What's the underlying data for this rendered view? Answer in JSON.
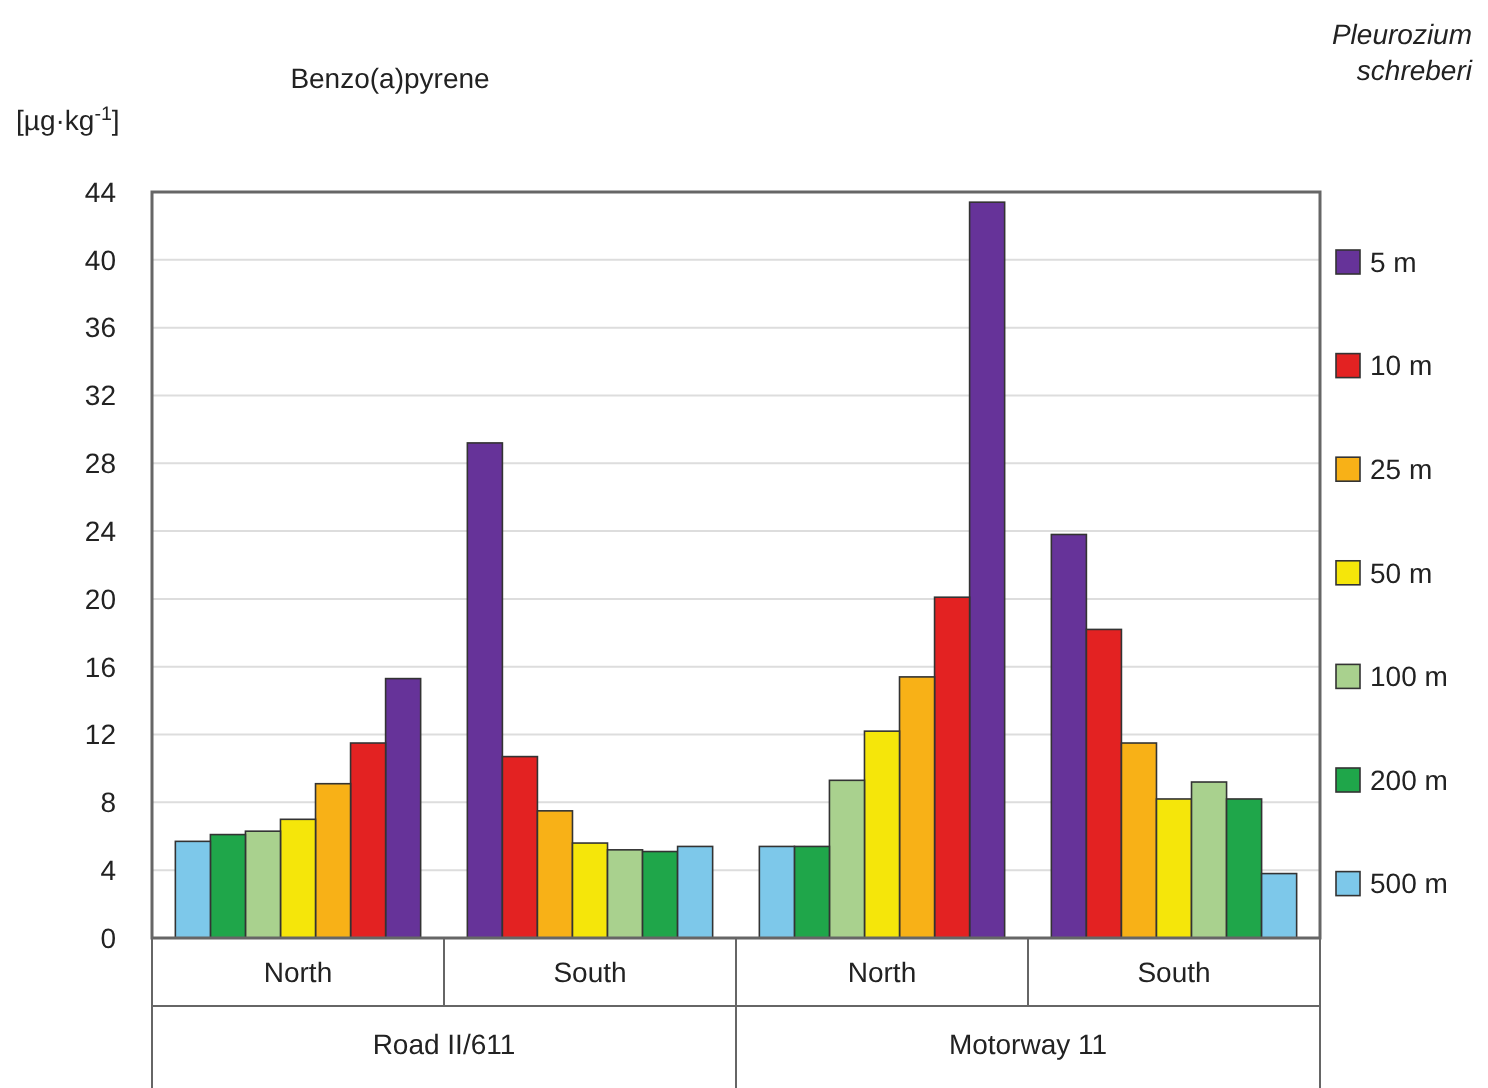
{
  "chart_data": {
    "type": "bar",
    "title": "Benzo(a)pyrene",
    "ylabel": "[µg·kg$^{-1}$]",
    "legend_title": "Pleurozium schreberi",
    "categories": [
      "North",
      "South",
      "North",
      "South"
    ],
    "annotations": [
      "Road II/611",
      "Motorway 11"
    ],
    "series": [
      {
        "name": "5 m",
        "color": "#663399",
        "values": [
          15.3,
          29.2,
          43.4,
          23.8
        ]
      },
      {
        "name": "10 m",
        "color": "#e32222",
        "values": [
          11.5,
          10.7,
          20.1,
          18.2
        ]
      },
      {
        "name": "25 m",
        "color": "#f8b117",
        "values": [
          9.1,
          7.5,
          15.4,
          11.5
        ]
      },
      {
        "name": "50 m",
        "color": "#f5e60a",
        "values": [
          7.0,
          5.6,
          12.2,
          8.2
        ]
      },
      {
        "name": "100 m",
        "color": "#a9d18e",
        "values": [
          6.3,
          5.2,
          9.3,
          9.2
        ]
      },
      {
        "name": "200 m",
        "color": "#1fa64a",
        "values": [
          6.1,
          5.1,
          5.4,
          8.2
        ]
      },
      {
        "name": "500 m",
        "color": "#7dc8ea",
        "values": [
          5.7,
          5.4,
          5.4,
          3.8
        ]
      }
    ],
    "ylim": [
      0,
      44
    ],
    "yticks": [
      0,
      4,
      8,
      12,
      16,
      20,
      24,
      28,
      32,
      36,
      40,
      44
    ],
    "grid": "y",
    "legend": "right"
  }
}
